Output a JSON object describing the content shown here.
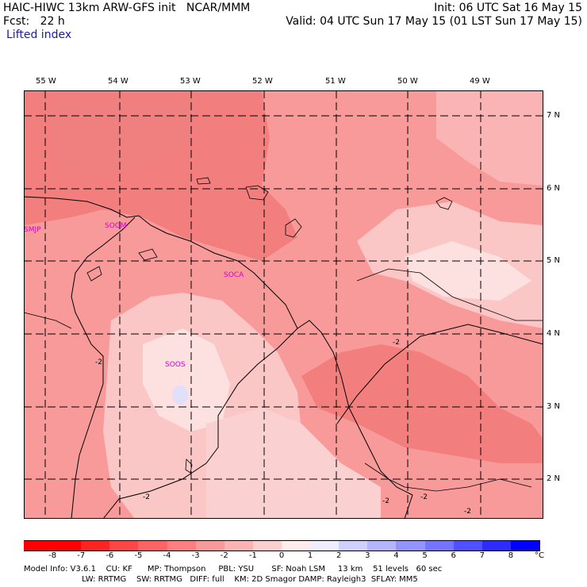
{
  "header": {
    "line1_left": "HAIC-HIWC 13km ARW-GFS init   NCAR/MMM",
    "line1_right": "Init: 06 UTC Sat 16 May 15",
    "line2_left": "Fcst:   22 h",
    "line2_right": "Valid: 04 UTC Sun 17 May 15 (01 LST Sun 17 May 15)",
    "field": "Lifted index"
  },
  "map": {
    "lon_labels": [
      "55 W",
      "54 W",
      "53 W",
      "52 W",
      "51 W",
      "50 W",
      "49 W"
    ],
    "lat_labels": [
      "7 N",
      "6 N",
      "5 N",
      "4 N",
      "3 N",
      "2 N"
    ],
    "stations": [
      "SMJP",
      "SOGM",
      "SOCA",
      "SOOS"
    ],
    "contour_label": "-2"
  },
  "colorbar": {
    "labels": [
      "-8",
      "-7",
      "-6",
      "-5",
      "-4",
      "-3",
      "-2",
      "-1",
      "0",
      "1",
      "2",
      "3",
      "4",
      "5",
      "6",
      "7",
      "8"
    ],
    "unit": "°C",
    "colors": [
      "#ff0000",
      "#ff2424",
      "#ff4646",
      "#ff6464",
      "#fb7f7f",
      "#f99a9a",
      "#fbb4b4",
      "#fdd0d0",
      "#ffeded",
      "#eeeeff",
      "#d0d0ff",
      "#b4b4ff",
      "#9494ff",
      "#7474ff",
      "#5050ff",
      "#2c2cff",
      "#0000ff"
    ]
  },
  "footer": {
    "line1": "Model Info: V3.6.1    CU: KF      MP: Thompson     PBL: YSU       SF: Noah LSM     13 km    51 levels   60 sec",
    "line2": "                       LW: RRTMG    SW: RRTMG   DIFF: full    KM: 2D Smagor DAMP: Rayleigh3  SFLAY: MM5"
  }
}
